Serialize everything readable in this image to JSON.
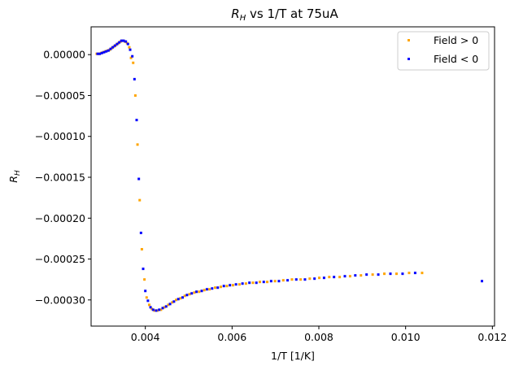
{
  "chart_data": {
    "type": "scatter",
    "title": {
      "symbol": "R",
      "subscript": "H",
      "rest": " vs 1/T at 75uA"
    },
    "xlabel": "1/T [1/K]",
    "ylabel": {
      "symbol": "R",
      "subscript": "H"
    },
    "xlim": [
      0.00275,
      0.01205
    ],
    "ylim": [
      -0.000332,
      3.4e-05
    ],
    "x_ticks": [
      {
        "value": 0.004,
        "label": "0.004"
      },
      {
        "value": 0.006,
        "label": "0.006"
      },
      {
        "value": 0.008,
        "label": "0.008"
      },
      {
        "value": 0.01,
        "label": "0.010"
      },
      {
        "value": 0.012,
        "label": "0.012"
      }
    ],
    "y_ticks": [
      {
        "value": 0.0,
        "label": "0.00000"
      },
      {
        "value": -5e-05,
        "label": "−0.00005"
      },
      {
        "value": -0.0001,
        "label": "−0.00010"
      },
      {
        "value": -0.00015,
        "label": "−0.00015"
      },
      {
        "value": -0.0002,
        "label": "−0.00020"
      },
      {
        "value": -0.00025,
        "label": "−0.00025"
      },
      {
        "value": -0.0003,
        "label": "−0.00030"
      }
    ],
    "grid": false,
    "legend_position": "top-right",
    "series": [
      {
        "name": "Field > 0",
        "color": "#ffa500",
        "marker": "square",
        "x": [
          0.00288,
          0.00293,
          0.00298,
          0.00303,
          0.00308,
          0.00313,
          0.00318,
          0.00323,
          0.00328,
          0.00333,
          0.00338,
          0.00343,
          0.00348,
          0.00353,
          0.00358,
          0.00363,
          0.00367,
          0.00372,
          0.00377,
          0.00382,
          0.00387,
          0.00392,
          0.00398,
          0.00403,
          0.00409,
          0.00415,
          0.00421,
          0.00428,
          0.00436,
          0.00444,
          0.00453,
          0.00462,
          0.00471,
          0.00481,
          0.00491,
          0.00502,
          0.00513,
          0.00524,
          0.00536,
          0.00548,
          0.00561,
          0.00574,
          0.00588,
          0.00602,
          0.00617,
          0.00632,
          0.00648,
          0.00664,
          0.00681,
          0.00699,
          0.00718,
          0.00738,
          0.00758,
          0.00779,
          0.00801,
          0.00824,
          0.00848,
          0.00872,
          0.00897,
          0.00924,
          0.00951,
          0.00979,
          0.01008,
          0.01038
        ],
        "y": [
          1e-06,
          1e-06,
          2e-06,
          3e-06,
          4e-06,
          5e-06,
          6e-06,
          8e-06,
          1e-05,
          1.2e-05,
          1.4e-05,
          1.6e-05,
          1.7e-05,
          1.6e-05,
          1.4e-05,
          9e-06,
          -4e-06,
          -1e-05,
          -5e-05,
          -0.00011,
          -0.000178,
          -0.000238,
          -0.000275,
          -0.000297,
          -0.000306,
          -0.000311,
          -0.000313,
          -0.000313,
          -0.000312,
          -0.000309,
          -0.000306,
          -0.000303,
          -0.0003,
          -0.000298,
          -0.000295,
          -0.000293,
          -0.000291,
          -0.00029,
          -0.000288,
          -0.000287,
          -0.000285,
          -0.000284,
          -0.000283,
          -0.000282,
          -0.000281,
          -0.00028,
          -0.000279,
          -0.000278,
          -0.000278,
          -0.000277,
          -0.000276,
          -0.000275,
          -0.000275,
          -0.000274,
          -0.000273,
          -0.000272,
          -0.000272,
          -0.000271,
          -0.00027,
          -0.000269,
          -0.000268,
          -0.000268,
          -0.000267,
          -0.000267
        ]
      },
      {
        "name": "Field < 0",
        "color": "#0000ff",
        "marker": "square",
        "x": [
          0.0029,
          0.00295,
          0.003,
          0.00305,
          0.0031,
          0.00315,
          0.0032,
          0.00325,
          0.0033,
          0.00335,
          0.0034,
          0.00345,
          0.0035,
          0.00355,
          0.0036,
          0.00365,
          0.0037,
          0.00375,
          0.0038,
          0.00385,
          0.0039,
          0.00395,
          0.004,
          0.00406,
          0.00412,
          0.00418,
          0.00425,
          0.00432,
          0.0044,
          0.00448,
          0.00457,
          0.00466,
          0.00476,
          0.00486,
          0.00496,
          0.00507,
          0.00518,
          0.0053,
          0.00542,
          0.00554,
          0.00567,
          0.00581,
          0.00595,
          0.00609,
          0.00624,
          0.0064,
          0.00656,
          0.00673,
          0.0069,
          0.00708,
          0.00728,
          0.00748,
          0.00768,
          0.0079,
          0.00812,
          0.00835,
          0.0086,
          0.00884,
          0.0091,
          0.00937,
          0.00965,
          0.00993,
          0.01022,
          0.01176
        ],
        "y": [
          1e-06,
          1e-06,
          2e-06,
          3e-06,
          4e-06,
          5e-06,
          7e-06,
          9e-06,
          1.1e-05,
          1.3e-05,
          1.5e-05,
          1.7e-05,
          1.7e-05,
          1.6e-05,
          1.3e-05,
          6e-06,
          -2e-06,
          -3e-05,
          -8e-05,
          -0.000152,
          -0.000218,
          -0.000262,
          -0.000289,
          -0.000301,
          -0.000309,
          -0.000312,
          -0.000313,
          -0.000312,
          -0.00031,
          -0.000308,
          -0.000305,
          -0.000302,
          -0.000299,
          -0.000297,
          -0.000294,
          -0.000292,
          -0.00029,
          -0.000289,
          -0.000287,
          -0.000286,
          -0.000285,
          -0.000283,
          -0.000282,
          -0.000281,
          -0.00028,
          -0.000279,
          -0.000279,
          -0.000278,
          -0.000277,
          -0.000277,
          -0.000276,
          -0.000275,
          -0.000275,
          -0.000274,
          -0.000273,
          -0.000272,
          -0.000271,
          -0.00027,
          -0.000269,
          -0.000269,
          -0.000268,
          -0.000268,
          -0.000267,
          -0.000277
        ]
      }
    ]
  }
}
